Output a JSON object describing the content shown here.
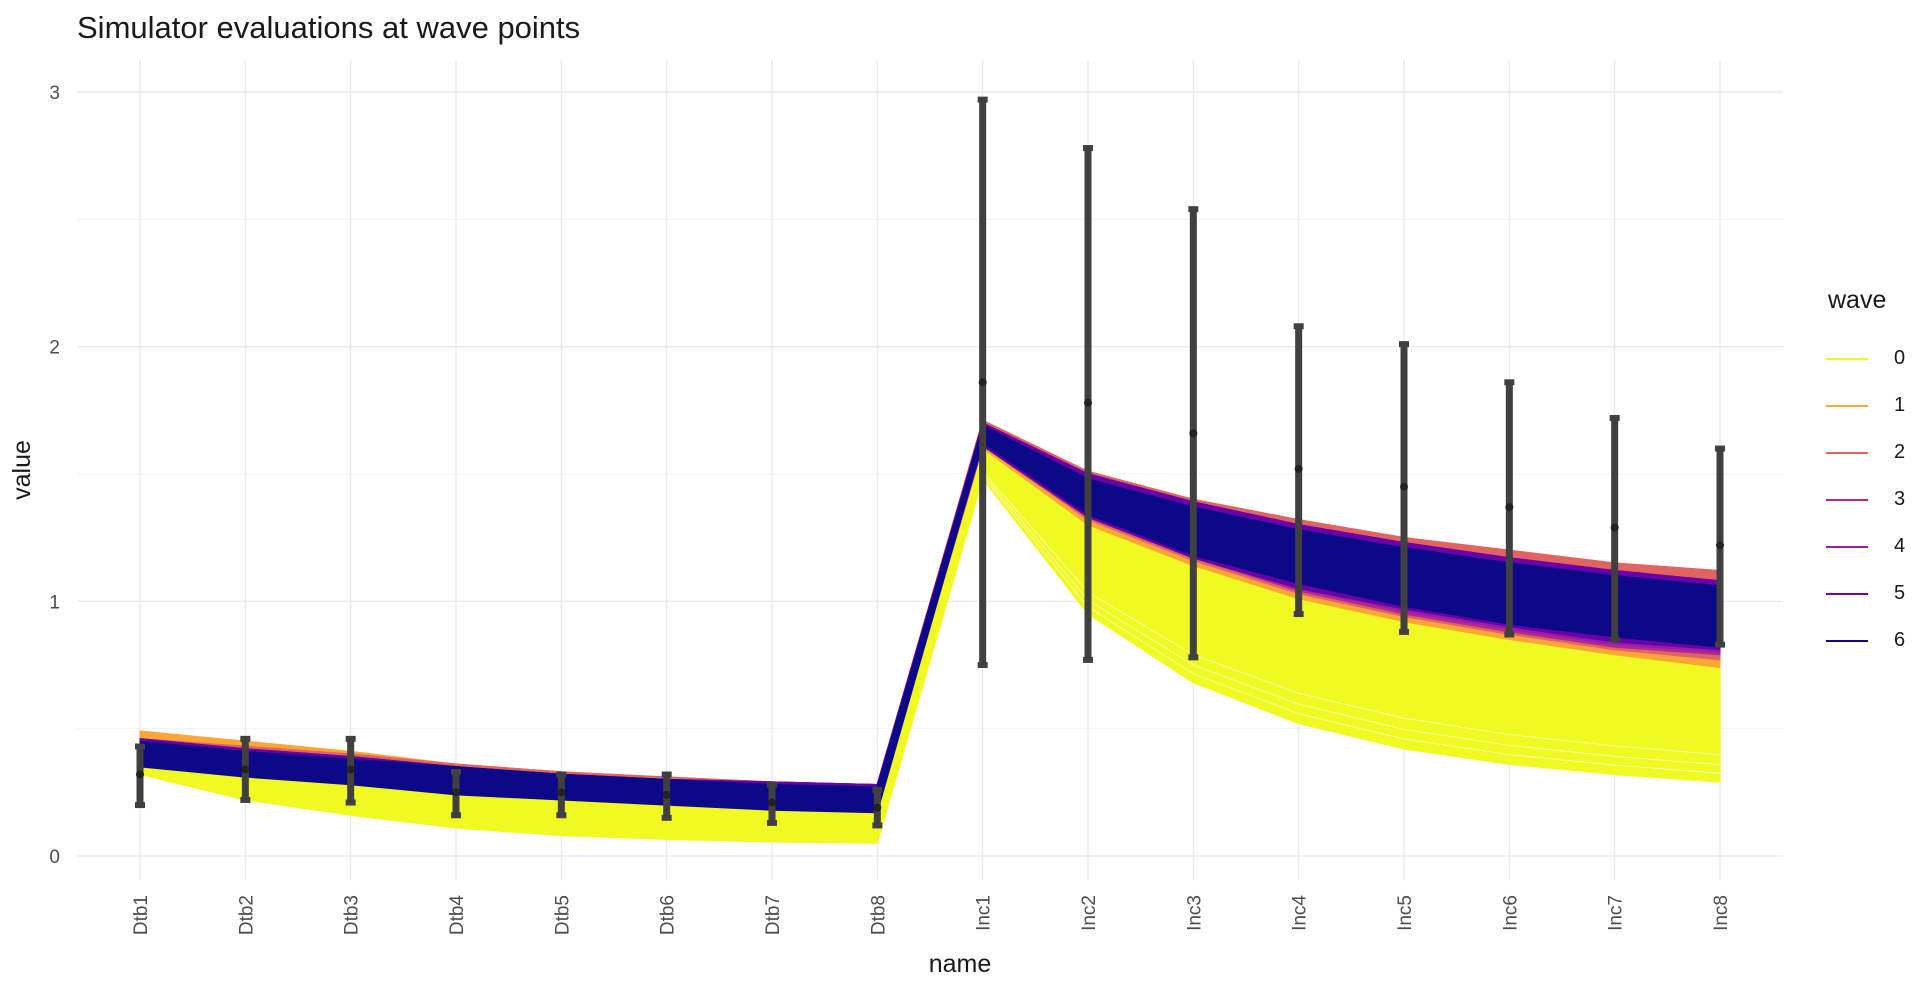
{
  "chart_data": {
    "type": "line",
    "title": "Simulator evaluations at wave points",
    "xlabel": "name",
    "ylabel": "value",
    "categories": [
      "Dtb1",
      "Dtb2",
      "Dtb3",
      "Dtb4",
      "Dtb5",
      "Dtb6",
      "Dtb7",
      "Dtb8",
      "Inc1",
      "Inc2",
      "Inc3",
      "Inc4",
      "Inc5",
      "Inc6",
      "Inc7",
      "Inc8"
    ],
    "ylim": [
      -0.07,
      3.05
    ],
    "yticks": [
      0,
      1,
      2,
      3
    ],
    "grid": true,
    "legend": {
      "title": "wave",
      "placement": "right"
    },
    "series": [
      {
        "name": "0",
        "color": "#f0f921",
        "lower": [
          0.32,
          0.22,
          0.16,
          0.11,
          0.08,
          0.065,
          0.055,
          0.05,
          1.48,
          0.95,
          0.68,
          0.52,
          0.42,
          0.36,
          0.32,
          0.29
        ],
        "upper": [
          0.44,
          0.4,
          0.35,
          0.31,
          0.28,
          0.26,
          0.25,
          0.24,
          1.62,
          1.34,
          1.18,
          1.06,
          0.97,
          0.89,
          0.83,
          0.78
        ]
      },
      {
        "name": "1",
        "color": "#fca636",
        "lower": [
          0.36,
          0.33,
          0.29,
          0.26,
          0.23,
          0.21,
          0.2,
          0.19,
          1.6,
          1.3,
          1.14,
          1.01,
          0.92,
          0.85,
          0.79,
          0.74
        ],
        "upper": [
          0.49,
          0.45,
          0.41,
          0.36,
          0.33,
          0.3,
          0.29,
          0.28,
          1.7,
          1.49,
          1.38,
          1.29,
          1.22,
          1.16,
          1.12,
          1.08
        ]
      },
      {
        "name": "2",
        "color": "#e16462",
        "lower": [
          0.37,
          0.34,
          0.3,
          0.27,
          0.24,
          0.22,
          0.21,
          0.2,
          1.61,
          1.32,
          1.16,
          1.03,
          0.94,
          0.87,
          0.81,
          0.77
        ],
        "upper": [
          0.46,
          0.43,
          0.4,
          0.36,
          0.33,
          0.31,
          0.29,
          0.28,
          1.71,
          1.51,
          1.4,
          1.32,
          1.25,
          1.2,
          1.15,
          1.12
        ]
      },
      {
        "name": "3",
        "color": "#b12a90",
        "lower": [
          0.36,
          0.33,
          0.29,
          0.26,
          0.23,
          0.21,
          0.2,
          0.19,
          1.61,
          1.33,
          1.17,
          1.04,
          0.95,
          0.88,
          0.82,
          0.79
        ],
        "upper": [
          0.46,
          0.42,
          0.39,
          0.35,
          0.32,
          0.3,
          0.29,
          0.28,
          1.7,
          1.5,
          1.39,
          1.3,
          1.23,
          1.17,
          1.12,
          1.08
        ]
      },
      {
        "name": "4",
        "color": "#9a1da6",
        "lower": [
          0.36,
          0.33,
          0.29,
          0.26,
          0.23,
          0.21,
          0.2,
          0.19,
          1.61,
          1.33,
          1.17,
          1.05,
          0.96,
          0.89,
          0.83,
          0.8
        ],
        "upper": [
          0.46,
          0.42,
          0.39,
          0.35,
          0.32,
          0.3,
          0.29,
          0.28,
          1.7,
          1.5,
          1.39,
          1.3,
          1.23,
          1.17,
          1.12,
          1.08
        ]
      },
      {
        "name": "5",
        "color": "#6a00a8",
        "lower": [
          0.36,
          0.33,
          0.29,
          0.26,
          0.23,
          0.21,
          0.2,
          0.19,
          1.61,
          1.33,
          1.17,
          1.05,
          0.97,
          0.9,
          0.84,
          0.81
        ],
        "upper": [
          0.46,
          0.42,
          0.39,
          0.35,
          0.32,
          0.3,
          0.29,
          0.28,
          1.7,
          1.5,
          1.39,
          1.3,
          1.23,
          1.17,
          1.12,
          1.08
        ]
      },
      {
        "name": "6",
        "color": "#0d0887",
        "lower": [
          0.35,
          0.31,
          0.28,
          0.24,
          0.22,
          0.2,
          0.18,
          0.17,
          1.62,
          1.34,
          1.18,
          1.07,
          0.98,
          0.91,
          0.86,
          0.82
        ],
        "upper": [
          0.45,
          0.41,
          0.38,
          0.35,
          0.32,
          0.3,
          0.28,
          0.27,
          1.69,
          1.48,
          1.37,
          1.28,
          1.21,
          1.15,
          1.1,
          1.06
        ]
      }
    ],
    "targets": {
      "color": "#404040",
      "value": [
        0.32,
        0.34,
        0.34,
        0.25,
        0.25,
        0.24,
        0.21,
        0.19,
        1.86,
        1.78,
        1.66,
        1.52,
        1.45,
        1.37,
        1.29,
        1.22
      ],
      "lower": [
        0.2,
        0.22,
        0.21,
        0.16,
        0.16,
        0.15,
        0.13,
        0.12,
        0.75,
        0.77,
        0.78,
        0.95,
        0.88,
        0.87,
        0.85,
        0.83
      ],
      "upper": [
        0.43,
        0.46,
        0.46,
        0.33,
        0.32,
        0.32,
        0.28,
        0.26,
        2.97,
        2.78,
        2.54,
        2.08,
        2.01,
        1.86,
        1.72,
        1.6
      ]
    }
  }
}
